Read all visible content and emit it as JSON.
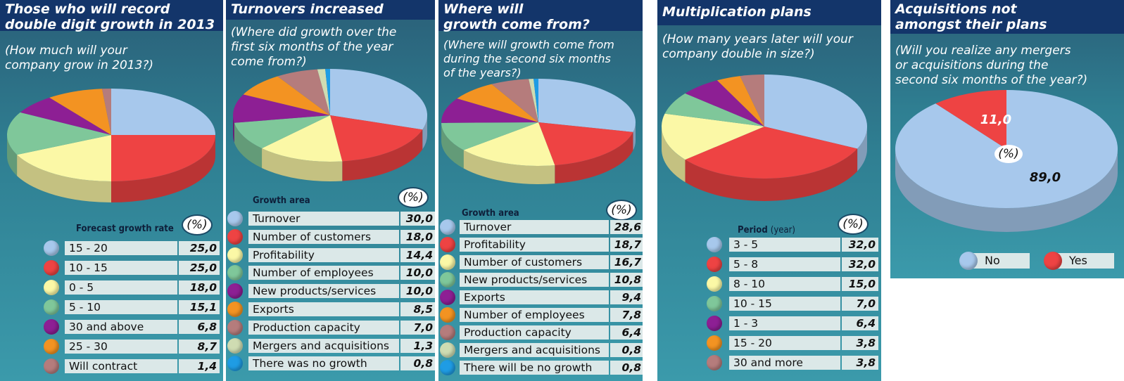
{
  "colors": {
    "light_blue": "#a7c8ec",
    "red": "#ee4343",
    "yellow": "#fbf8a6",
    "green": "#7fc79a",
    "purple": "#8d1f94",
    "orange": "#f39322",
    "mauve": "#b57c7c",
    "pale_green": "#cfdcb2",
    "bright_blue": "#1f9ce4"
  },
  "panels": [
    {
      "title": "Those who will record double digit growth in 2013",
      "title_lines": [
        "Those who will record",
        "double digit growth in 2013"
      ],
      "subtitle_lines": [
        "(How much will your",
        "company grow in 2013?)"
      ],
      "area_label": "Forecast growth rate",
      "pct_label": "(%)"
    },
    {
      "title": "Turnovers increased",
      "title_lines": [
        "Turnovers increased"
      ],
      "subtitle_lines": [
        "(Where did growth over the",
        "first six months of the year",
        "come from?)"
      ],
      "area_label": "Growth area",
      "pct_label": "(%)"
    },
    {
      "title": "Where will growth come from?",
      "title_lines": [
        "Where will",
        "growth come from?"
      ],
      "subtitle_lines": [
        "(Where will growth come from",
        "during the second six months",
        "of the years?)"
      ],
      "area_label": "Growth area",
      "pct_label": "(%)"
    },
    {
      "title": "Multiplication plans",
      "title_lines": [
        "Multiplication plans"
      ],
      "subtitle_lines": [
        "(How many years later will your",
        "company double in size?)"
      ],
      "area_label": "Period",
      "area_unit": "(year)",
      "pct_label": "(%)"
    },
    {
      "title": "Acquisitions not amongst their plans",
      "title_lines": [
        "Acquisitions not",
        "amongst their plans"
      ],
      "subtitle_lines": [
        "(Will you realize any mergers",
        "or acquisitions during the",
        "second six months of the year?)"
      ],
      "pct_label": "(%)"
    }
  ],
  "chart_data": [
    {
      "type": "pie",
      "title": "Those who will record double digit growth in 2013",
      "subtitle": "(How much will your company grow in 2013?)",
      "legend_title": "Forecast growth rate",
      "unit": "(%)",
      "categories": [
        "15 - 20",
        "10 - 15",
        "0 - 5",
        "5 - 10",
        "30 and above",
        "25 - 30",
        "Will contract"
      ],
      "values": [
        25.0,
        25.0,
        18.0,
        15.1,
        6.8,
        8.7,
        1.4
      ],
      "value_labels": [
        "25,0",
        "25,0",
        "18,0",
        "15,1",
        "6,8",
        "8,7",
        "1,4"
      ],
      "colors": [
        "#a7c8ec",
        "#ee4343",
        "#fbf8a6",
        "#7fc79a",
        "#8d1f94",
        "#f39322",
        "#b57c7c"
      ]
    },
    {
      "type": "pie",
      "title": "Turnovers increased",
      "subtitle": "(Where did growth over the first six months of the year come from?)",
      "legend_title": "Growth area",
      "unit": "(%)",
      "categories": [
        "Turnover",
        "Number of customers",
        "Profitability",
        "Number of employees",
        "New products/services",
        "Exports",
        "Production capacity",
        "Mergers and acquisitions",
        "There was no growth"
      ],
      "values": [
        30.0,
        18.0,
        14.4,
        10.0,
        10.0,
        8.5,
        7.0,
        1.3,
        0.8
      ],
      "value_labels": [
        "30,0",
        "18,0",
        "14,4",
        "10,0",
        "10,0",
        "8,5",
        "7,0",
        "1,3",
        "0,8"
      ],
      "colors": [
        "#a7c8ec",
        "#ee4343",
        "#fbf8a6",
        "#7fc79a",
        "#8d1f94",
        "#f39322",
        "#b57c7c",
        "#cfdcb2",
        "#1f9ce4"
      ]
    },
    {
      "type": "pie",
      "title": "Where will growth come from?",
      "subtitle": "(Where will growth come from during the second six months of the years?)",
      "legend_title": "Growth area",
      "unit": "(%)",
      "categories": [
        "Turnover",
        "Profitability",
        "Number of customers",
        "New products/services",
        "Exports",
        "Number of employees",
        "Production capacity",
        "Mergers and acquisitions",
        "There will be no growth"
      ],
      "values": [
        28.6,
        18.7,
        16.7,
        10.8,
        9.4,
        7.8,
        6.4,
        0.8,
        0.8
      ],
      "value_labels": [
        "28,6",
        "18,7",
        "16,7",
        "10,8",
        "9,4",
        "7,8",
        "6,4",
        "0,8",
        "0,8"
      ],
      "colors": [
        "#a7c8ec",
        "#ee4343",
        "#fbf8a6",
        "#7fc79a",
        "#8d1f94",
        "#f39322",
        "#b57c7c",
        "#cfdcb2",
        "#1f9ce4"
      ]
    },
    {
      "type": "pie",
      "title": "Multiplication plans",
      "subtitle": "(How many years later will your company double in size?)",
      "legend_title": "Period (year)",
      "unit": "(%)",
      "categories": [
        "3 - 5",
        "5 - 8",
        "8 - 10",
        "10 - 15",
        "1 - 3",
        "15 - 20",
        "30 and more"
      ],
      "values": [
        32.0,
        32.0,
        15.0,
        7.0,
        6.4,
        3.8,
        3.8
      ],
      "value_labels": [
        "32,0",
        "32,0",
        "15,0",
        "7,0",
        "6,4",
        "3,8",
        "3,8"
      ],
      "colors": [
        "#a7c8ec",
        "#ee4343",
        "#fbf8a6",
        "#7fc79a",
        "#8d1f94",
        "#f39322",
        "#b57c7c"
      ]
    },
    {
      "type": "pie",
      "title": "Acquisitions not amongst their plans",
      "subtitle": "(Will you realize any mergers or acquisitions during the second six months of the year?)",
      "unit": "(%)",
      "categories": [
        "No",
        "Yes"
      ],
      "values": [
        89.0,
        11.0
      ],
      "value_labels": [
        "89,0",
        "11,0"
      ],
      "colors": [
        "#a7c8ec",
        "#ee4343"
      ]
    }
  ]
}
